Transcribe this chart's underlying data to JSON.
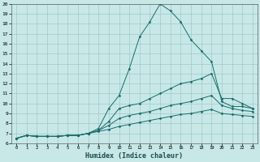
{
  "xlabel": "Humidex (Indice chaleur)",
  "background_color": "#c8e8e8",
  "grid_color": "#a0c8c8",
  "line_color": "#1a6b6b",
  "xlim": [
    -0.5,
    23.5
  ],
  "ylim": [
    6,
    20
  ],
  "xticks": [
    0,
    1,
    2,
    3,
    4,
    5,
    6,
    7,
    8,
    9,
    10,
    11,
    12,
    13,
    14,
    15,
    16,
    17,
    18,
    19,
    20,
    21,
    22,
    23
  ],
  "yticks": [
    6,
    7,
    8,
    9,
    10,
    11,
    12,
    13,
    14,
    15,
    16,
    17,
    18,
    19,
    20
  ],
  "series": [
    {
      "x": [
        0,
        1,
        2,
        3,
        4,
        5,
        6,
        7,
        8,
        9,
        10,
        11,
        12,
        13,
        14,
        15,
        16,
        17,
        18,
        19,
        20,
        21,
        22,
        23
      ],
      "y": [
        6.5,
        6.8,
        6.7,
        6.7,
        6.7,
        6.8,
        6.8,
        7.0,
        7.5,
        9.5,
        10.8,
        13.5,
        16.7,
        18.2,
        20.0,
        19.3,
        18.2,
        16.4,
        15.3,
        14.2,
        10.2,
        9.7,
        9.7,
        9.5
      ]
    },
    {
      "x": [
        0,
        1,
        2,
        3,
        4,
        5,
        6,
        7,
        8,
        9,
        10,
        11,
        12,
        13,
        14,
        15,
        16,
        17,
        18,
        19,
        20,
        21,
        22,
        23
      ],
      "y": [
        6.5,
        6.8,
        6.7,
        6.7,
        6.7,
        6.8,
        6.8,
        7.0,
        7.3,
        8.2,
        9.5,
        9.8,
        10.0,
        10.5,
        11.0,
        11.5,
        12.0,
        12.2,
        12.5,
        13.0,
        10.5,
        10.5,
        10.0,
        9.5
      ]
    },
    {
      "x": [
        0,
        1,
        2,
        3,
        4,
        5,
        6,
        7,
        8,
        9,
        10,
        11,
        12,
        13,
        14,
        15,
        16,
        17,
        18,
        19,
        20,
        21,
        22,
        23
      ],
      "y": [
        6.5,
        6.8,
        6.7,
        6.7,
        6.7,
        6.8,
        6.8,
        7.0,
        7.3,
        7.8,
        8.5,
        8.8,
        9.0,
        9.2,
        9.5,
        9.8,
        10.0,
        10.2,
        10.5,
        10.8,
        9.8,
        9.5,
        9.3,
        9.2
      ]
    },
    {
      "x": [
        0,
        1,
        2,
        3,
        4,
        5,
        6,
        7,
        8,
        9,
        10,
        11,
        12,
        13,
        14,
        15,
        16,
        17,
        18,
        19,
        20,
        21,
        22,
        23
      ],
      "y": [
        6.5,
        6.8,
        6.7,
        6.7,
        6.7,
        6.8,
        6.8,
        7.0,
        7.2,
        7.4,
        7.7,
        7.9,
        8.1,
        8.3,
        8.5,
        8.7,
        8.9,
        9.0,
        9.2,
        9.4,
        9.0,
        8.9,
        8.8,
        8.7
      ]
    }
  ]
}
